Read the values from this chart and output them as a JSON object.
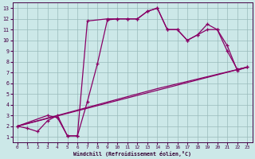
{
  "xlabel": "Windchill (Refroidissement éolien,°C)",
  "xlim": [
    -0.5,
    23.5
  ],
  "ylim": [
    0.5,
    13.5
  ],
  "xticks": [
    0,
    1,
    2,
    3,
    4,
    5,
    6,
    7,
    8,
    9,
    10,
    11,
    12,
    13,
    14,
    15,
    16,
    17,
    18,
    19,
    20,
    21,
    22,
    23
  ],
  "yticks": [
    1,
    2,
    3,
    4,
    5,
    6,
    7,
    8,
    9,
    10,
    11,
    12,
    13
  ],
  "bg_color": "#cce8e8",
  "line_color": "#880066",
  "grid_color": "#99bbbb",
  "line1_x": [
    0,
    1,
    2,
    3,
    4,
    5,
    6,
    7,
    9,
    10,
    11,
    12,
    13,
    14,
    15,
    16,
    17,
    18,
    19,
    20,
    21,
    22,
    23
  ],
  "line1_y": [
    2,
    1.8,
    1.5,
    2.5,
    3.0,
    1.1,
    1.1,
    11.8,
    12,
    12,
    12,
    12,
    12.7,
    13,
    11,
    11,
    10,
    10.5,
    11.5,
    11,
    9.5,
    7.2,
    7.5
  ],
  "line2_x": [
    0,
    3,
    4,
    5,
    6,
    7,
    8,
    9,
    10,
    11,
    12,
    13,
    14,
    15,
    16,
    17,
    18,
    19,
    20,
    21,
    22,
    23
  ],
  "line2_y": [
    2,
    3,
    2.8,
    1.1,
    1.1,
    4.3,
    7.8,
    11.9,
    12,
    12,
    12,
    12.7,
    13,
    11,
    11,
    10,
    10.5,
    11,
    11,
    9,
    7.3,
    7.5
  ],
  "line3_x": [
    0,
    23
  ],
  "line3_y": [
    2,
    7.5
  ],
  "line4_x": [
    0,
    14,
    23
  ],
  "line4_y": [
    2,
    5.5,
    7.5
  ]
}
